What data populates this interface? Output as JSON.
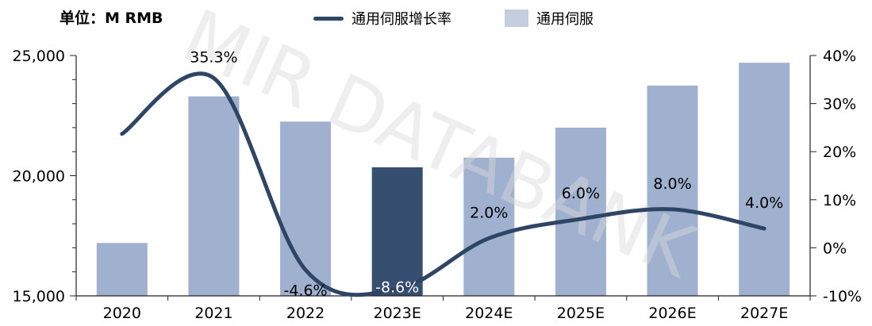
{
  "unit_label": "单位：M RMB",
  "watermark": "MIR DATABANK",
  "colors": {
    "bar": "#9fb1ce",
    "bar_highlight": "#364e6f",
    "line": "#2e4566",
    "axis": "#222222",
    "watermark": "#d9d9d9"
  },
  "chart_data": {
    "type": "bar+line",
    "categories": [
      "2020",
      "2021",
      "2022",
      "2023E",
      "2024E",
      "2025E",
      "2026E",
      "2027E"
    ],
    "highlight_category": "2023E",
    "series": [
      {
        "name": "通用伺服",
        "type": "bar",
        "axis": "left",
        "values": [
          17200,
          23300,
          22250,
          20350,
          20750,
          22000,
          23750,
          24700
        ]
      },
      {
        "name": "通用伺服增长率",
        "type": "line",
        "axis": "right",
        "unit": "%",
        "values": [
          23.7,
          35.3,
          -4.6,
          -8.6,
          2.0,
          6.0,
          8.0,
          4.0
        ],
        "labels": [
          "",
          "35.3%",
          "-4.6%",
          "-8.6%",
          "2.0%",
          "6.0%",
          "8.0%",
          "4.0%"
        ]
      }
    ],
    "y_left": {
      "min": 15000,
      "max": 25000,
      "ticks": [
        "15,000",
        "20,000",
        "25,000"
      ],
      "tick_values": [
        15000,
        20000,
        25000
      ]
    },
    "y_right": {
      "min": -10,
      "max": 40,
      "ticks": [
        "-10%",
        "0%",
        "10%",
        "20%",
        "30%",
        "40%"
      ],
      "tick_values": [
        -10,
        0,
        10,
        20,
        30,
        40
      ]
    },
    "legend_position": "top"
  }
}
